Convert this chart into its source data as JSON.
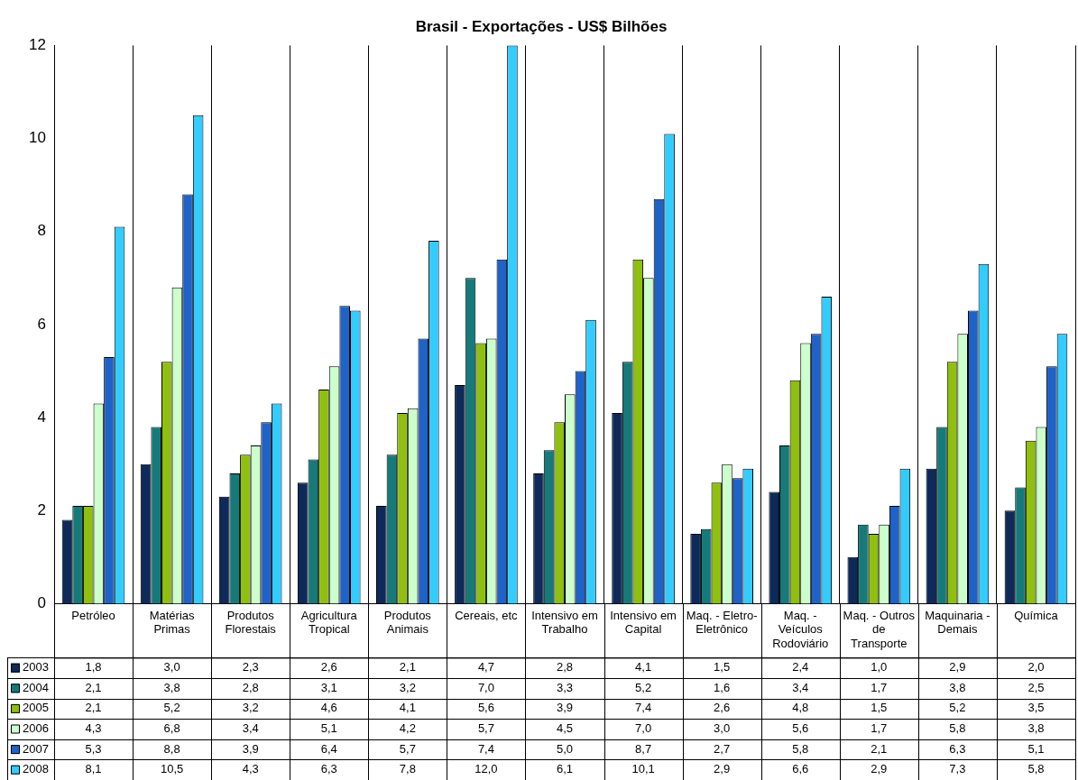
{
  "chart_data": {
    "type": "bar",
    "title": "Brasil - Exportações - US$ Bilhões",
    "categories": [
      "Petróleo",
      "Matérias Primas",
      "Produtos Florestais",
      "Agricultura Tropical",
      "Produtos Animais",
      "Cereais, etc",
      "Intensivo em Trabalho",
      "Intensivo em Capital",
      "Maq. - Eletro-Eletrônico",
      "Maq. - Veículos Rodoviário",
      "Maq. - Outros de Transporte",
      "Maquinaria - Demais",
      "Química"
    ],
    "series": [
      {
        "name": "2003",
        "color": "#0d2a5a",
        "values": [
          1.8,
          3.0,
          2.3,
          2.6,
          2.1,
          4.7,
          2.8,
          4.1,
          1.5,
          2.4,
          1.0,
          2.9,
          2.0
        ],
        "value_labels": [
          "1,8",
          "3,0",
          "2,3",
          "2,6",
          "2,1",
          "4,7",
          "2,8",
          "4,1",
          "1,5",
          "2,4",
          "1,0",
          "2,9",
          "2,0"
        ]
      },
      {
        "name": "2004",
        "color": "#167a7a",
        "values": [
          2.1,
          3.8,
          2.8,
          3.1,
          3.2,
          7.0,
          3.3,
          5.2,
          1.6,
          3.4,
          1.7,
          3.8,
          2.5
        ],
        "value_labels": [
          "2,1",
          "3,8",
          "2,8",
          "3,1",
          "3,2",
          "7,0",
          "3,3",
          "5,2",
          "1,6",
          "3,4",
          "1,7",
          "3,8",
          "2,5"
        ]
      },
      {
        "name": "2005",
        "color": "#8fbf0f",
        "values": [
          2.1,
          5.2,
          3.2,
          4.6,
          4.1,
          5.6,
          3.9,
          7.4,
          2.6,
          4.8,
          1.5,
          5.2,
          3.5
        ],
        "value_labels": [
          "2,1",
          "5,2",
          "3,2",
          "4,6",
          "4,1",
          "5,6",
          "3,9",
          "7,4",
          "2,6",
          "4,8",
          "1,5",
          "5,2",
          "3,5"
        ]
      },
      {
        "name": "2006",
        "color": "#ccffcc",
        "values": [
          4.3,
          6.8,
          3.4,
          5.1,
          4.2,
          5.7,
          4.5,
          7.0,
          3.0,
          5.6,
          1.7,
          5.8,
          3.8
        ],
        "value_labels": [
          "4,3",
          "6,8",
          "3,4",
          "5,1",
          "4,2",
          "5,7",
          "4,5",
          "7,0",
          "3,0",
          "5,6",
          "1,7",
          "5,8",
          "3,8"
        ]
      },
      {
        "name": "2007",
        "color": "#1f62c8",
        "values": [
          5.3,
          8.8,
          3.9,
          6.4,
          5.7,
          7.4,
          5.0,
          8.7,
          2.7,
          5.8,
          2.1,
          6.3,
          5.1
        ],
        "value_labels": [
          "5,3",
          "8,8",
          "3,9",
          "6,4",
          "5,7",
          "7,4",
          "5,0",
          "8,7",
          "2,7",
          "5,8",
          "2,1",
          "6,3",
          "5,1"
        ]
      },
      {
        "name": "2008",
        "color": "#33ccff",
        "values": [
          8.1,
          10.5,
          4.3,
          6.3,
          7.8,
          12.0,
          6.1,
          10.1,
          2.9,
          6.6,
          2.9,
          7.3,
          5.8
        ],
        "value_labels": [
          "8,1",
          "10,5",
          "4,3",
          "6,3",
          "7,8",
          "12,0",
          "6,1",
          "10,1",
          "2,9",
          "6,6",
          "2,9",
          "7,3",
          "5,8"
        ]
      }
    ],
    "ylim": [
      0,
      12
    ],
    "yticks": [
      0,
      2,
      4,
      6,
      8,
      10,
      12
    ],
    "grid": "x",
    "legend": "bottom"
  }
}
